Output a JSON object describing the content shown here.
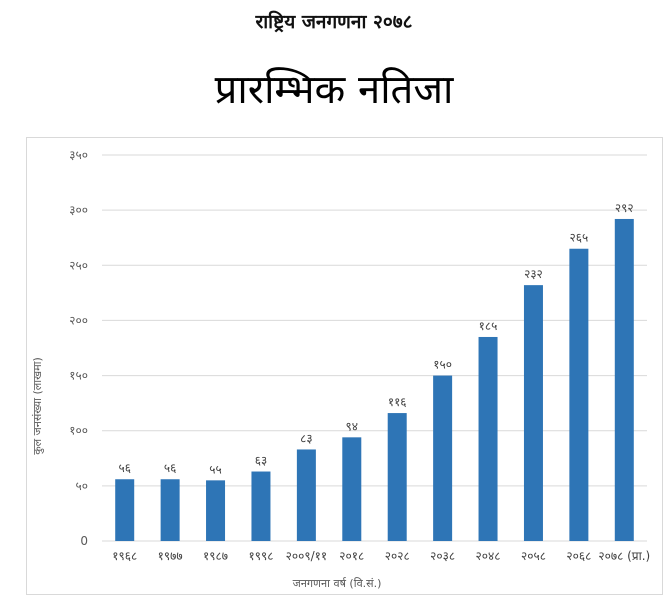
{
  "header": {
    "title": "राष्ट्रिय जनगणना २०७८",
    "subtitle": "प्रारम्भिक नतिजा"
  },
  "colors": {
    "bar": "#2e75b6",
    "grid": "#d9d9d9"
  },
  "chart_data": {
    "type": "bar",
    "title": "",
    "xlabel": "जनगणना वर्ष (वि.सं.)",
    "ylabel": "कुल जनसंख्या (लाखमा)",
    "ylim": [
      0,
      350
    ],
    "yticks": [
      0,
      50,
      100,
      150,
      200,
      250,
      300,
      350
    ],
    "ytick_labels": [
      "0",
      "५०",
      "१००",
      "१५०",
      "२००",
      "२५०",
      "३००",
      "३५०"
    ],
    "grid": true,
    "legend": "none",
    "categories": [
      "१९६८",
      "१९७७",
      "१९८७",
      "१९९८",
      "२००९/११",
      "२०१८",
      "२०२८",
      "२०३८",
      "२०४८",
      "२०५८",
      "२०६८",
      "२०७८ (प्रा.)"
    ],
    "values": [
      56,
      56,
      55,
      63,
      83,
      94,
      116,
      150,
      185,
      232,
      265,
      292
    ],
    "data_labels": [
      "५६",
      "५६",
      "५५",
      "६३",
      "८३",
      "९४",
      "११६",
      "१५०",
      "१८५",
      "२३२",
      "२६५",
      "२९२"
    ]
  }
}
